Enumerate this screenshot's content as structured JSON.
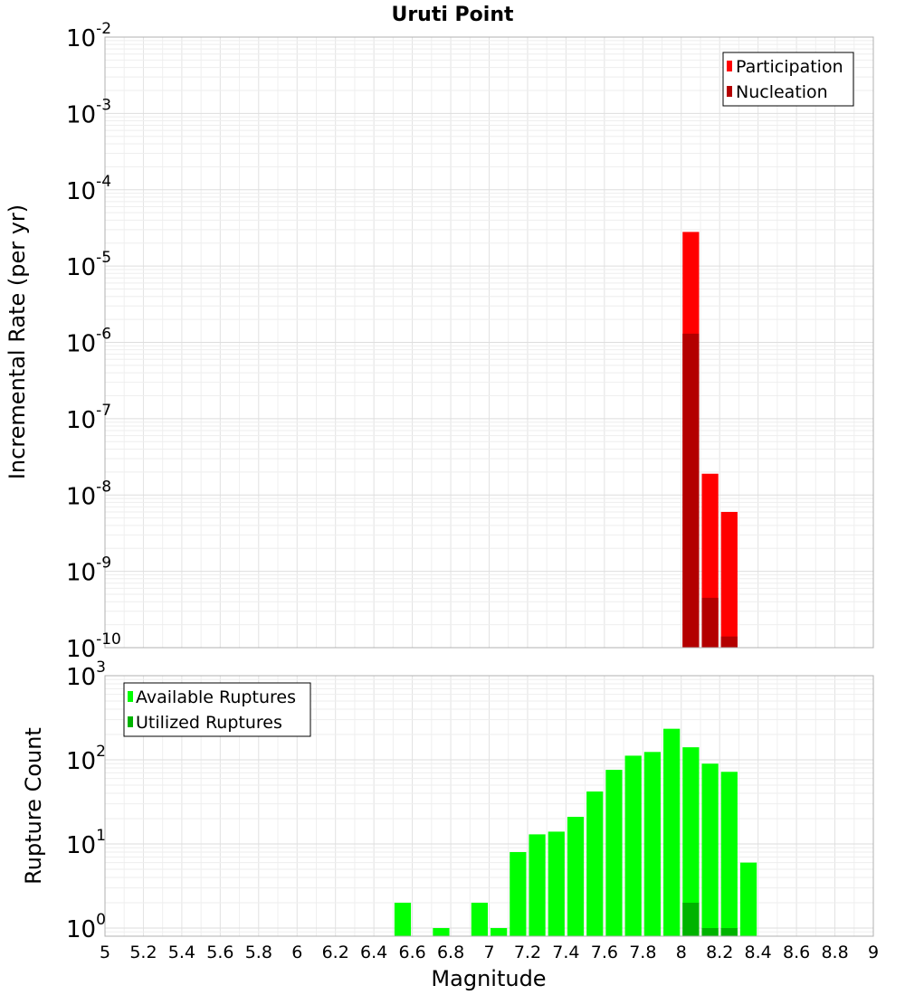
{
  "chart_data": [
    {
      "type": "bar",
      "panel": "top",
      "title": "Uruti Point",
      "xlabel": "Magnitude",
      "ylabel": "Incremental Rate (per yr)",
      "xlim": [
        5,
        9
      ],
      "ylim": [
        1e-10,
        0.01
      ],
      "yscale": "log",
      "bin_width": 0.1,
      "grid": true,
      "legend_position": "top-right",
      "y_tick_exponents": [
        "-2",
        "-3",
        "-4",
        "-5",
        "-6",
        "-7",
        "-8",
        "-9",
        "-10"
      ],
      "series": [
        {
          "name": "Participation",
          "color": "#ff0000",
          "x": [
            8.05,
            8.15,
            8.25
          ],
          "values": [
            2.8e-05,
            1.9e-08,
            6e-09
          ]
        },
        {
          "name": "Nucleation",
          "color": "#b30000",
          "x": [
            8.05,
            8.15,
            8.25
          ],
          "values": [
            1.3e-06,
            4.5e-10,
            1.4e-10
          ]
        }
      ]
    },
    {
      "type": "bar",
      "panel": "bottom",
      "xlabel": "Magnitude",
      "ylabel": "Rupture Count",
      "xlim": [
        5,
        9
      ],
      "ylim": [
        0.8,
        1000
      ],
      "yscale": "log",
      "bin_width": 0.1,
      "grid": true,
      "legend_position": "top-left",
      "y_tick_exponents": [
        "3",
        "2",
        "1",
        "0"
      ],
      "series": [
        {
          "name": "Available Ruptures",
          "color": "#00ff00",
          "x": [
            6.55,
            6.75,
            6.95,
            7.05,
            7.15,
            7.25,
            7.35,
            7.45,
            7.55,
            7.65,
            7.75,
            7.85,
            7.95,
            8.05,
            8.15,
            8.25,
            8.35
          ],
          "values": [
            2,
            1,
            2,
            1,
            8,
            13,
            14,
            21,
            42,
            76,
            112,
            124,
            234,
            141,
            90,
            72,
            6
          ]
        },
        {
          "name": "Utilized Ruptures",
          "color": "#00b300",
          "x": [
            8.05,
            8.15,
            8.25
          ],
          "values": [
            2,
            1,
            1
          ]
        }
      ]
    }
  ],
  "x_ticks": [
    "5",
    "5.2",
    "5.4",
    "5.6",
    "5.8",
    "6",
    "6.2",
    "6.4",
    "6.6",
    "6.8",
    "7",
    "7.2",
    "7.4",
    "7.6",
    "7.8",
    "8",
    "8.2",
    "8.4",
    "8.6",
    "8.8",
    "9"
  ],
  "y_tick_base": "10"
}
